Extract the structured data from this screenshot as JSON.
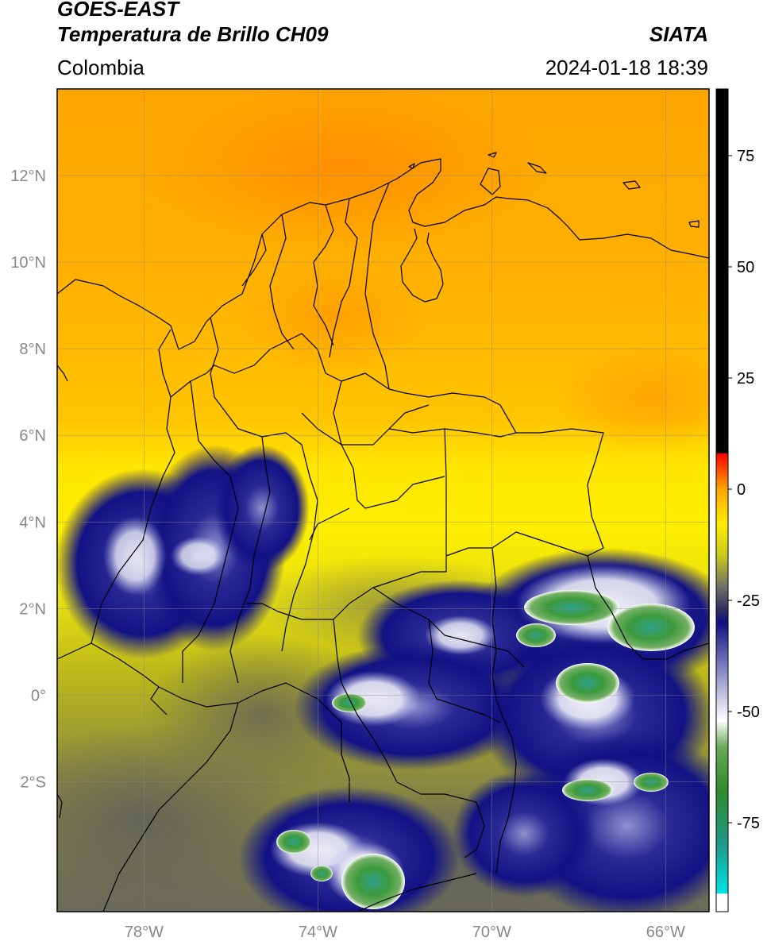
{
  "header": {
    "satellite": "GOES-EAST",
    "product": "Temperatura de Brillo CH09",
    "organization": "SIATA",
    "region": "Colombia",
    "timestamp": "2024-01-18 18:39"
  },
  "map": {
    "lon_range": [
      -80,
      -65
    ],
    "lat_range": [
      -5,
      14
    ],
    "lon_ticks": [
      {
        "value": -78,
        "label": "78°W"
      },
      {
        "value": -74,
        "label": "74°W"
      },
      {
        "value": -70,
        "label": "70°W"
      },
      {
        "value": -66,
        "label": "66°W"
      }
    ],
    "lat_ticks": [
      {
        "value": 12,
        "label": "12°N"
      },
      {
        "value": 10,
        "label": "10°N"
      },
      {
        "value": 8,
        "label": "8°N"
      },
      {
        "value": 6,
        "label": "6°N"
      },
      {
        "value": 4,
        "label": "4°N"
      },
      {
        "value": 2,
        "label": "2°N"
      },
      {
        "value": 0,
        "label": "0°"
      },
      {
        "value": -2,
        "label": "2°S"
      }
    ],
    "gridlines": true
  },
  "colorbar": {
    "range": [
      -95,
      90
    ],
    "ticks": [
      {
        "value": 75,
        "label": "75"
      },
      {
        "value": 50,
        "label": "50"
      },
      {
        "value": 25,
        "label": "25"
      },
      {
        "value": 0,
        "label": "0"
      },
      {
        "value": -25,
        "label": "-25"
      },
      {
        "value": -50,
        "label": "-50"
      },
      {
        "value": -75,
        "label": "-75"
      }
    ],
    "stops": [
      {
        "value": -95,
        "color": "#ffffff"
      },
      {
        "value": -91,
        "color": "#ffffff"
      },
      {
        "value": -90.9,
        "color": "#00e5e5"
      },
      {
        "value": -80,
        "color": "#1f9a8a"
      },
      {
        "value": -68,
        "color": "#2e8a2e"
      },
      {
        "value": -58,
        "color": "#6aaa5a"
      },
      {
        "value": -52,
        "color": "#ffffff"
      },
      {
        "value": -40,
        "color": "#8080c0"
      },
      {
        "value": -30,
        "color": "#101080"
      },
      {
        "value": -27,
        "color": "#303060"
      },
      {
        "value": -22,
        "color": "#707068"
      },
      {
        "value": -15,
        "color": "#c8c820"
      },
      {
        "value": -8,
        "color": "#ffee00"
      },
      {
        "value": 0,
        "color": "#ffa500"
      },
      {
        "value": 8,
        "color": "#ff0000"
      },
      {
        "value": 8.1,
        "color": "#000000"
      },
      {
        "value": 90,
        "color": "#000000"
      }
    ]
  }
}
